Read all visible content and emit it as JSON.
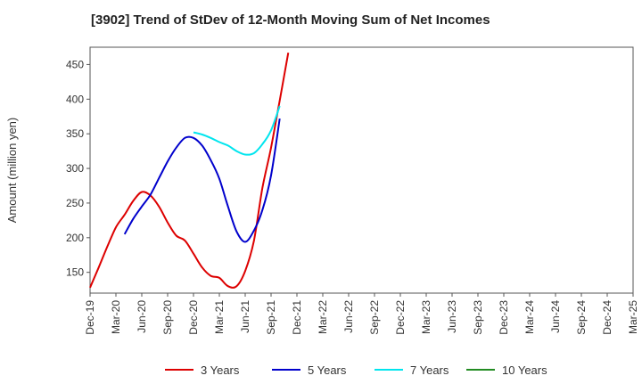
{
  "chart_data": {
    "type": "line",
    "title": "[3902]  Trend of StDev of 12-Month Moving Sum of Net Incomes",
    "ylabel": "Amount (million yen)",
    "xlabel": "",
    "ylim": [
      120,
      475
    ],
    "yticks": [
      150,
      200,
      250,
      300,
      350,
      400,
      450
    ],
    "x_ticks": [
      "Dec-19",
      "Mar-20",
      "Jun-20",
      "Sep-20",
      "Dec-20",
      "Mar-21",
      "Jun-21",
      "Sep-21",
      "Dec-21",
      "Mar-22",
      "Jun-22",
      "Sep-22",
      "Dec-22",
      "Mar-23",
      "Jun-23",
      "Sep-23",
      "Dec-23",
      "Mar-24",
      "Jun-24",
      "Sep-24",
      "Dec-24",
      "Mar-25"
    ],
    "grid": true,
    "legend_position": "bottom",
    "series": [
      {
        "name": "3 Years",
        "color": "#dd0000",
        "points": [
          [
            0,
            128
          ],
          [
            1,
            157
          ],
          [
            2,
            187
          ],
          [
            3,
            215
          ],
          [
            4,
            233
          ],
          [
            5,
            253
          ],
          [
            6,
            266
          ],
          [
            7,
            261
          ],
          [
            8,
            245
          ],
          [
            9,
            222
          ],
          [
            10,
            203
          ],
          [
            11,
            196
          ],
          [
            12,
            177
          ],
          [
            13,
            157
          ],
          [
            14,
            145
          ],
          [
            15,
            142
          ],
          [
            16,
            130
          ],
          [
            17,
            130
          ],
          [
            18,
            152
          ],
          [
            19,
            195
          ],
          [
            20,
            272
          ],
          [
            21,
            330
          ],
          [
            22,
            398
          ],
          [
            23,
            467
          ]
        ]
      },
      {
        "name": "5 Years",
        "color": "#0000cc",
        "points": [
          [
            4,
            205
          ],
          [
            5,
            227
          ],
          [
            6,
            245
          ],
          [
            7,
            262
          ],
          [
            8,
            286
          ],
          [
            9,
            310
          ],
          [
            10,
            330
          ],
          [
            11,
            344
          ],
          [
            12,
            344
          ],
          [
            13,
            333
          ],
          [
            14,
            312
          ],
          [
            15,
            285
          ],
          [
            16,
            245
          ],
          [
            17,
            209
          ],
          [
            18,
            194
          ],
          [
            19,
            210
          ],
          [
            20,
            240
          ],
          [
            21,
            290
          ],
          [
            22,
            372
          ]
        ]
      },
      {
        "name": "7 Years",
        "color": "#00e5ee",
        "points": [
          [
            12,
            352
          ],
          [
            13,
            349
          ],
          [
            14,
            344
          ],
          [
            15,
            338
          ],
          [
            16,
            333
          ],
          [
            17,
            325
          ],
          [
            18,
            320
          ],
          [
            19,
            322
          ],
          [
            20,
            335
          ],
          [
            21,
            355
          ],
          [
            22,
            390
          ]
        ]
      },
      {
        "name": "10 Years",
        "color": "#228b22",
        "points": []
      }
    ]
  }
}
